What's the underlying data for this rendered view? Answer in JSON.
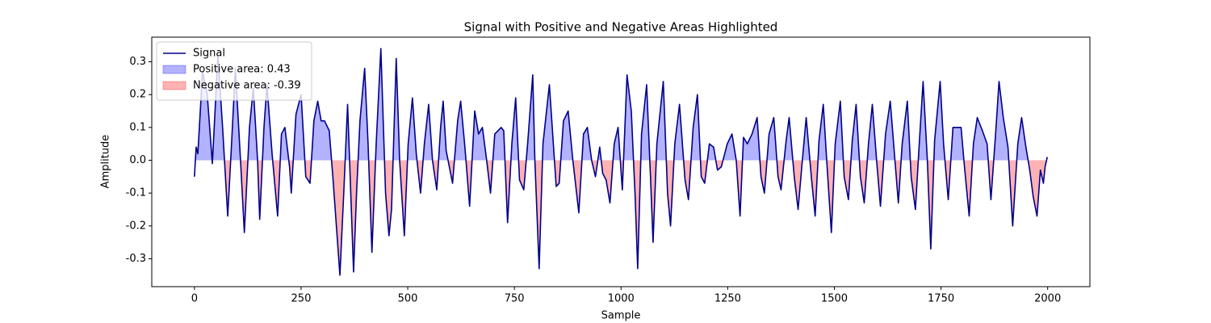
{
  "chart_data": {
    "type": "line",
    "title": "Signal with Positive and Negative Areas Highlighted",
    "xlabel": "Sample",
    "ylabel": "Amplitude",
    "x": [
      0,
      4,
      8,
      19,
      30,
      42,
      55,
      66,
      78,
      87,
      96,
      108,
      117,
      129,
      138,
      148,
      153,
      163,
      170,
      182,
      195,
      204,
      212,
      223,
      227,
      238,
      250,
      261,
      271,
      280,
      289,
      297,
      305,
      316,
      325,
      341,
      350,
      359,
      373,
      380,
      388,
      399,
      407,
      416,
      426,
      437,
      448,
      456,
      462,
      473,
      481,
      492,
      501,
      511,
      520,
      530,
      539,
      549,
      558,
      568,
      577,
      583,
      590,
      605,
      617,
      624,
      634,
      645,
      657,
      666,
      675,
      685,
      694,
      704,
      719,
      725,
      734,
      744,
      753,
      762,
      772,
      781,
      793,
      798,
      808,
      817,
      832,
      848,
      855,
      865,
      876,
      887,
      901,
      912,
      921,
      931,
      940,
      950,
      957,
      965,
      974,
      984,
      993,
      1003,
      1014,
      1024,
      1033,
      1039,
      1048,
      1060,
      1069,
      1075,
      1084,
      1099,
      1109,
      1116,
      1126,
      1137,
      1150,
      1158,
      1169,
      1179,
      1188,
      1196,
      1207,
      1217,
      1226,
      1235,
      1249,
      1260,
      1270,
      1279,
      1287,
      1296,
      1307,
      1319,
      1328,
      1336,
      1347,
      1358,
      1368,
      1375,
      1387,
      1394,
      1406,
      1415,
      1425,
      1434,
      1446,
      1455,
      1464,
      1474,
      1483,
      1493,
      1502,
      1514,
      1523,
      1533,
      1542,
      1551,
      1561,
      1570,
      1580,
      1589,
      1599,
      1608,
      1620,
      1631,
      1642,
      1650,
      1659,
      1671,
      1680,
      1690,
      1699,
      1708,
      1718,
      1726,
      1735,
      1748,
      1756,
      1767,
      1778,
      1790,
      1797,
      1805,
      1816,
      1826,
      1835,
      1847,
      1858,
      1867,
      1879,
      1886,
      1896,
      1907,
      1918,
      1930,
      1939,
      1949,
      1958,
      1966,
      1975,
      1983,
      1990,
      1994,
      1999
    ],
    "series": [
      {
        "name": "Signal",
        "color": "#00008b",
        "values": [
          -0.05,
          0.04,
          0.02,
          0.27,
          0.2,
          -0.01,
          0.32,
          0.1,
          -0.17,
          0.05,
          0.28,
          0.0,
          -0.22,
          0.1,
          0.22,
          0.0,
          -0.18,
          0.1,
          0.23,
          0.02,
          -0.17,
          0.08,
          0.1,
          -0.02,
          -0.1,
          0.14,
          0.2,
          -0.05,
          -0.07,
          0.12,
          0.18,
          0.12,
          0.12,
          0.09,
          -0.06,
          -0.35,
          -0.1,
          0.17,
          -0.34,
          -0.1,
          0.12,
          0.28,
          0.05,
          -0.28,
          0.05,
          0.34,
          -0.1,
          -0.23,
          -0.15,
          0.31,
          0.0,
          -0.23,
          0.05,
          0.19,
          0.02,
          -0.1,
          0.05,
          0.17,
          0.0,
          -0.09,
          0.1,
          0.18,
          0.03,
          -0.07,
          0.12,
          0.18,
          0.04,
          -0.14,
          0.15,
          0.08,
          0.1,
          0.0,
          -0.1,
          0.08,
          0.1,
          0.09,
          -0.19,
          0.05,
          0.19,
          -0.06,
          -0.09,
          0.05,
          0.26,
          0.0,
          -0.33,
          0.05,
          0.23,
          -0.08,
          -0.07,
          0.12,
          0.15,
          0.0,
          -0.16,
          0.08,
          0.1,
          0.0,
          -0.05,
          0.04,
          -0.04,
          -0.06,
          -0.13,
          0.05,
          0.1,
          -0.09,
          0.26,
          0.15,
          -0.11,
          -0.33,
          0.08,
          0.23,
          -0.05,
          -0.25,
          0.05,
          0.24,
          -0.1,
          -0.2,
          0.05,
          0.17,
          -0.06,
          -0.12,
          0.1,
          0.2,
          -0.05,
          -0.07,
          0.05,
          0.04,
          -0.03,
          -0.02,
          0.05,
          0.08,
          0.0,
          -0.17,
          0.07,
          0.05,
          0.08,
          0.13,
          -0.05,
          -0.1,
          0.08,
          0.13,
          -0.05,
          -0.09,
          0.06,
          0.13,
          -0.05,
          -0.15,
          0.0,
          0.13,
          -0.05,
          -0.17,
          0.06,
          0.17,
          -0.02,
          -0.22,
          0.05,
          0.18,
          -0.05,
          -0.12,
          0.06,
          0.17,
          -0.05,
          -0.13,
          0.05,
          0.17,
          0.0,
          -0.14,
          0.08,
          0.18,
          0.0,
          -0.13,
          0.05,
          0.18,
          -0.05,
          -0.15,
          0.05,
          0.24,
          0.0,
          -0.27,
          0.06,
          0.24,
          0.05,
          -0.12,
          0.1,
          0.1,
          0.1,
          -0.02,
          -0.17,
          0.05,
          0.13,
          0.09,
          0.05,
          -0.12,
          0.1,
          0.24,
          0.13,
          0.04,
          -0.2,
          0.05,
          0.13,
          0.04,
          -0.03,
          -0.11,
          -0.17,
          -0.03,
          -0.07,
          -0.02,
          0.01
        ]
      }
    ],
    "fills": [
      {
        "name": "Positive area: 0.43",
        "color": "#0000ff",
        "side": "positive"
      },
      {
        "name": "Negative area: -0.39",
        "color": "#ff0000",
        "side": "negative"
      }
    ],
    "xlim": [
      -100,
      2099
    ],
    "ylim": [
      -0.385,
      0.375
    ],
    "xticks": [
      0,
      250,
      500,
      750,
      1000,
      1250,
      1500,
      1750,
      2000
    ],
    "yticks": [
      -0.3,
      -0.2,
      -0.1,
      {
        "value": 0,
        "label": "0.0"
      },
      0.1,
      0.2,
      0.3
    ],
    "legend": "upper left",
    "grid": false
  }
}
